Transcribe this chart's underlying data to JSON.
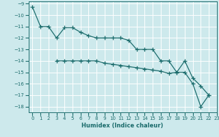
{
  "line1_x": [
    0,
    1,
    2,
    3,
    4,
    5,
    6,
    7,
    8,
    9,
    10,
    11,
    12,
    13,
    14,
    15,
    16,
    17,
    18,
    19,
    20,
    21,
    22
  ],
  "line1_y": [
    -9.3,
    -11.0,
    -11.0,
    -12.0,
    -11.1,
    -11.1,
    -11.5,
    -11.8,
    -12.0,
    -12.0,
    -12.0,
    -12.0,
    -12.2,
    -13.0,
    -13.0,
    -13.0,
    -14.0,
    -14.0,
    -15.0,
    -15.0,
    -16.0,
    -18.0,
    -17.0
  ],
  "line2_x": [
    3,
    4,
    5,
    6,
    7,
    8,
    9,
    10,
    11,
    12,
    13,
    14,
    15,
    16,
    17,
    18,
    19,
    20,
    21,
    22
  ],
  "line2_y": [
    -14.0,
    -14.0,
    -14.0,
    -14.0,
    -14.0,
    -14.0,
    -14.2,
    -14.3,
    -14.4,
    -14.5,
    -14.6,
    -14.7,
    -14.8,
    -14.9,
    -15.1,
    -15.0,
    -14.0,
    -15.5,
    -16.2,
    -17.0
  ],
  "color": "#1a6b6b",
  "bg_color": "#cde9ec",
  "grid_color": "#ffffff",
  "xlabel": "Humidex (Indice chaleur)",
  "ylim": [
    -18.5,
    -8.8
  ],
  "xlim": [
    -0.5,
    23.0
  ],
  "yticks": [
    -9,
    -10,
    -11,
    -12,
    -13,
    -14,
    -15,
    -16,
    -17,
    -18
  ],
  "xticks": [
    0,
    1,
    2,
    3,
    4,
    5,
    6,
    7,
    8,
    9,
    10,
    11,
    12,
    13,
    14,
    15,
    16,
    17,
    18,
    19,
    20,
    21,
    22,
    23
  ],
  "xtick_labels": [
    "0",
    "1",
    "2",
    "3",
    "4",
    "5",
    "6",
    "7",
    "8",
    "9",
    "10",
    "11",
    "12",
    "13",
    "14",
    "15",
    "16",
    "17",
    "18",
    "19",
    "20",
    "21",
    "22",
    "23"
  ],
  "marker": "+",
  "markersize": 4,
  "linewidth": 0.9
}
